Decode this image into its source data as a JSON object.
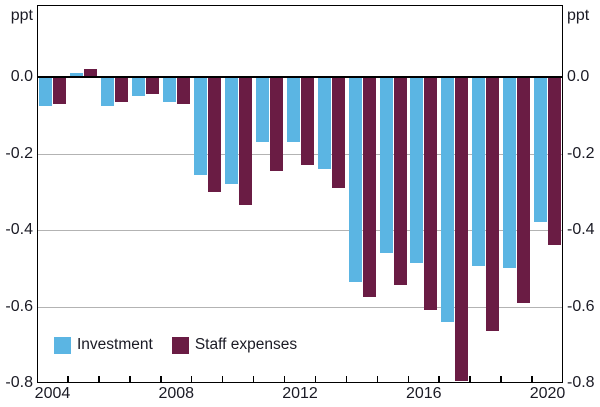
{
  "chart_data": {
    "type": "bar",
    "title": "",
    "unit_label": "ppt",
    "categories": [
      2004,
      2005,
      2006,
      2007,
      2008,
      2009,
      2010,
      2011,
      2012,
      2013,
      2014,
      2015,
      2016,
      2017,
      2018,
      2019,
      2020
    ],
    "series": [
      {
        "name": "Investment",
        "color": "#5bb5e3",
        "values": [
          -0.075,
          0.01,
          -0.075,
          -0.05,
          -0.065,
          -0.255,
          -0.28,
          -0.17,
          -0.17,
          -0.24,
          -0.535,
          -0.46,
          -0.485,
          -0.64,
          -0.495,
          -0.5,
          -0.38
        ]
      },
      {
        "name": "Staff expenses",
        "color": "#6a1c44",
        "values": [
          -0.07,
          0.02,
          -0.065,
          -0.045,
          -0.07,
          -0.3,
          -0.335,
          -0.245,
          -0.23,
          -0.29,
          -0.575,
          -0.545,
          -0.61,
          -0.795,
          -0.665,
          -0.59,
          -0.44
        ]
      }
    ],
    "ylim": [
      -0.8,
      0.19
    ],
    "yticks": [
      0,
      -0.2,
      -0.4,
      -0.6,
      -0.8
    ],
    "ytick_labels": [
      "0.0",
      "-0.2",
      "-0.4",
      "-0.6",
      "-0.8"
    ],
    "xtick_years": [
      2004,
      2008,
      2012,
      2016,
      2020
    ],
    "xtick_labels": [
      "2004",
      "2008",
      "2012",
      "2016",
      "2020"
    ],
    "grid": true,
    "legend_position": "inside-bottom-left"
  },
  "colors": {
    "gridline": "#b3b3b3",
    "axis": "#000000",
    "text": "#1a1a24",
    "background": "#ffffff"
  }
}
